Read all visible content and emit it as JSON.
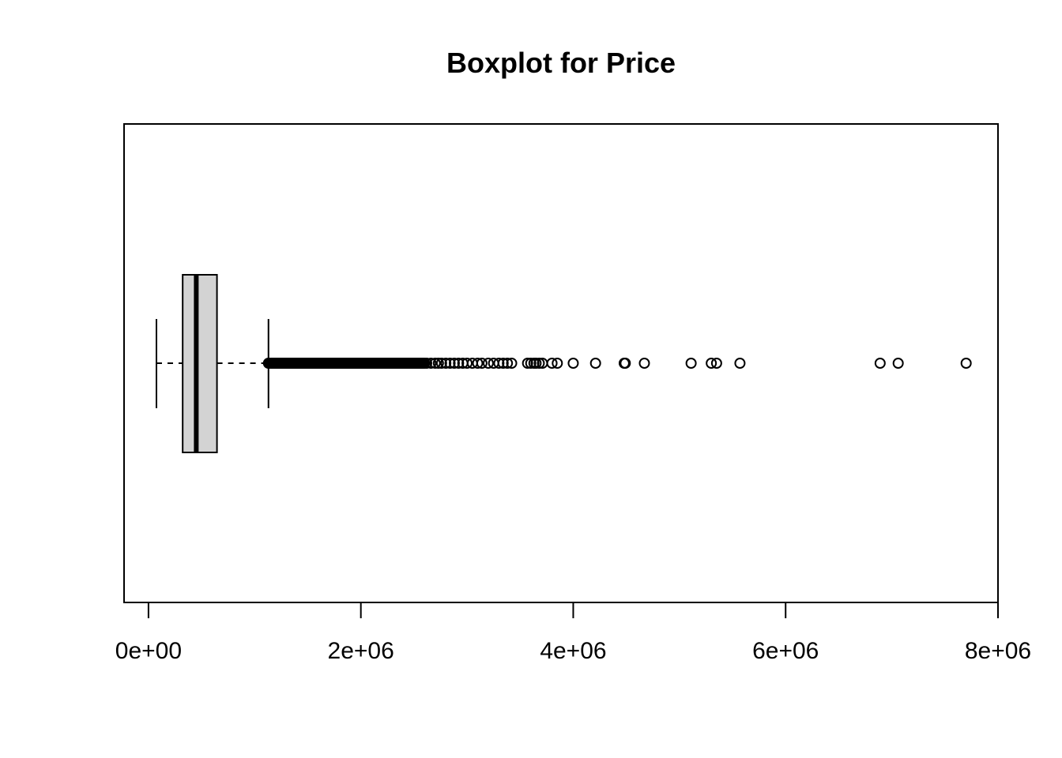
{
  "chart_data": {
    "type": "boxplot",
    "orientation": "horizontal",
    "title": "Boxplot for Price",
    "xlabel": "",
    "ylabel": "",
    "xlim": [
      -230000,
      8000000
    ],
    "x_ticks": [
      0,
      2000000,
      4000000,
      6000000,
      8000000
    ],
    "x_tick_labels": [
      "0e+00",
      "2e+06",
      "4e+06",
      "6e+06",
      "8e+06"
    ],
    "grid": false,
    "legend": "none",
    "box_color": "#d3d3d3",
    "line_color": "#000000",
    "stats": {
      "lower_whisker": 75000,
      "q1": 322000,
      "median": 450000,
      "q3": 645000,
      "upper_whisker": 1130000
    },
    "dense_outlier_range": [
      1130000,
      2600000
    ],
    "outliers": [
      2620000,
      2660000,
      2700000,
      2730000,
      2760000,
      2800000,
      2840000,
      2880000,
      2920000,
      2960000,
      3000000,
      3050000,
      3100000,
      3140000,
      3200000,
      3250000,
      3300000,
      3340000,
      3380000,
      3420000,
      3570000,
      3600000,
      3630000,
      3650000,
      3680000,
      3710000,
      3800000,
      3850000,
      4000000,
      4210000,
      4480000,
      4490000,
      4670000,
      5110000,
      5300000,
      5350000,
      5570000,
      6890000,
      7060000,
      7700000
    ]
  }
}
